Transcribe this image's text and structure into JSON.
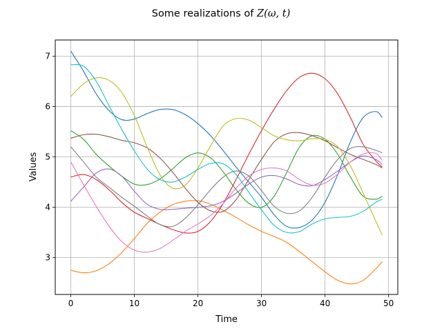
{
  "chart_data": {
    "type": "line",
    "title_prefix": "Some realizations of ",
    "title_math": "Z(ω, t)",
    "xlabel": "Time",
    "ylabel": "Values",
    "xlim": [
      -2.45,
      51.45
    ],
    "ylim": [
      2.27,
      7.32
    ],
    "xticks": [
      0,
      10,
      20,
      30,
      40,
      50
    ],
    "yticks": [
      3,
      4,
      5,
      6,
      7
    ],
    "grid": true,
    "series": [
      {
        "color": "#1f77b4",
        "points": [
          [
            0,
            7.1
          ],
          [
            2,
            6.7
          ],
          [
            4,
            6.25
          ],
          [
            6,
            5.92
          ],
          [
            8,
            5.74
          ],
          [
            10,
            5.75
          ],
          [
            12,
            5.86
          ],
          [
            14,
            5.94
          ],
          [
            16,
            5.94
          ],
          [
            18,
            5.84
          ],
          [
            20,
            5.66
          ],
          [
            22,
            5.42
          ],
          [
            24,
            5.12
          ],
          [
            26,
            4.8
          ],
          [
            28,
            4.5
          ],
          [
            30,
            4.2
          ],
          [
            32,
            3.85
          ],
          [
            34,
            3.62
          ],
          [
            36,
            3.6
          ],
          [
            38,
            3.75
          ],
          [
            40,
            4.1
          ],
          [
            42,
            4.65
          ],
          [
            44,
            5.3
          ],
          [
            46,
            5.78
          ],
          [
            48,
            5.9
          ],
          [
            49,
            5.78
          ]
        ]
      },
      {
        "color": "#ff7f0e",
        "points": [
          [
            0,
            2.75
          ],
          [
            2,
            2.7
          ],
          [
            4,
            2.74
          ],
          [
            6,
            2.88
          ],
          [
            8,
            3.1
          ],
          [
            10,
            3.38
          ],
          [
            12,
            3.68
          ],
          [
            14,
            3.9
          ],
          [
            16,
            4.05
          ],
          [
            18,
            4.12
          ],
          [
            20,
            4.13
          ],
          [
            22,
            4.06
          ],
          [
            24,
            3.94
          ],
          [
            26,
            3.8
          ],
          [
            28,
            3.65
          ],
          [
            30,
            3.52
          ],
          [
            32,
            3.42
          ],
          [
            34,
            3.3
          ],
          [
            36,
            3.12
          ],
          [
            38,
            2.92
          ],
          [
            40,
            2.72
          ],
          [
            42,
            2.55
          ],
          [
            44,
            2.48
          ],
          [
            46,
            2.55
          ],
          [
            48,
            2.78
          ],
          [
            49,
            2.92
          ]
        ]
      },
      {
        "color": "#2ca02c",
        "points": [
          [
            0,
            5.52
          ],
          [
            2,
            5.35
          ],
          [
            4,
            5.05
          ],
          [
            6,
            4.82
          ],
          [
            8,
            4.62
          ],
          [
            10,
            4.46
          ],
          [
            12,
            4.45
          ],
          [
            14,
            4.56
          ],
          [
            16,
            4.76
          ],
          [
            18,
            4.98
          ],
          [
            20,
            5.08
          ],
          [
            22,
            4.98
          ],
          [
            24,
            4.7
          ],
          [
            26,
            4.35
          ],
          [
            28,
            4.08
          ],
          [
            30,
            4.0
          ],
          [
            32,
            4.22
          ],
          [
            34,
            4.7
          ],
          [
            36,
            5.2
          ],
          [
            38,
            5.42
          ],
          [
            40,
            5.35
          ],
          [
            42,
            5.05
          ],
          [
            44,
            4.6
          ],
          [
            46,
            4.22
          ],
          [
            48,
            4.16
          ],
          [
            49,
            4.22
          ]
        ]
      },
      {
        "color": "#d62728",
        "points": [
          [
            0,
            4.6
          ],
          [
            2,
            4.65
          ],
          [
            4,
            4.55
          ],
          [
            6,
            4.35
          ],
          [
            8,
            4.1
          ],
          [
            10,
            3.9
          ],
          [
            12,
            3.78
          ],
          [
            14,
            3.66
          ],
          [
            16,
            3.56
          ],
          [
            18,
            3.49
          ],
          [
            20,
            3.52
          ],
          [
            22,
            3.72
          ],
          [
            24,
            4.08
          ],
          [
            26,
            4.55
          ],
          [
            28,
            5.05
          ],
          [
            30,
            5.52
          ],
          [
            32,
            5.95
          ],
          [
            34,
            6.32
          ],
          [
            36,
            6.58
          ],
          [
            38,
            6.66
          ],
          [
            40,
            6.55
          ],
          [
            42,
            6.25
          ],
          [
            44,
            5.78
          ],
          [
            46,
            5.25
          ],
          [
            48,
            4.92
          ],
          [
            49,
            4.8
          ]
        ]
      },
      {
        "color": "#9467bd",
        "points": [
          [
            0,
            4.12
          ],
          [
            2,
            4.4
          ],
          [
            4,
            4.68
          ],
          [
            6,
            4.76
          ],
          [
            8,
            4.62
          ],
          [
            10,
            4.32
          ],
          [
            12,
            4.06
          ],
          [
            14,
            3.96
          ],
          [
            16,
            3.96
          ],
          [
            18,
            3.98
          ],
          [
            20,
            4.0
          ],
          [
            22,
            4.03
          ],
          [
            24,
            4.12
          ],
          [
            26,
            4.28
          ],
          [
            28,
            4.46
          ],
          [
            30,
            4.6
          ],
          [
            32,
            4.63
          ],
          [
            34,
            4.56
          ],
          [
            36,
            4.45
          ],
          [
            38,
            4.43
          ],
          [
            40,
            4.55
          ],
          [
            42,
            4.72
          ],
          [
            44,
            4.9
          ],
          [
            46,
            5.02
          ],
          [
            48,
            4.95
          ],
          [
            49,
            4.85
          ]
        ]
      },
      {
        "color": "#8c564b",
        "points": [
          [
            0,
            5.37
          ],
          [
            2,
            5.44
          ],
          [
            4,
            5.45
          ],
          [
            6,
            5.4
          ],
          [
            8,
            5.33
          ],
          [
            10,
            5.28
          ],
          [
            12,
            5.18
          ],
          [
            14,
            4.98
          ],
          [
            16,
            4.7
          ],
          [
            18,
            4.38
          ],
          [
            20,
            4.1
          ],
          [
            22,
            3.93
          ],
          [
            24,
            3.92
          ],
          [
            26,
            4.15
          ],
          [
            28,
            4.55
          ],
          [
            30,
            4.95
          ],
          [
            32,
            5.3
          ],
          [
            34,
            5.46
          ],
          [
            36,
            5.48
          ],
          [
            38,
            5.42
          ],
          [
            40,
            5.32
          ],
          [
            42,
            5.18
          ],
          [
            44,
            5.05
          ],
          [
            46,
            4.95
          ],
          [
            48,
            4.85
          ],
          [
            49,
            4.78
          ]
        ]
      },
      {
        "color": "#e377c2",
        "points": [
          [
            0,
            4.9
          ],
          [
            2,
            4.45
          ],
          [
            4,
            4.02
          ],
          [
            6,
            3.63
          ],
          [
            8,
            3.32
          ],
          [
            10,
            3.15
          ],
          [
            12,
            3.11
          ],
          [
            14,
            3.18
          ],
          [
            16,
            3.34
          ],
          [
            18,
            3.52
          ],
          [
            20,
            3.67
          ],
          [
            22,
            3.84
          ],
          [
            24,
            4.08
          ],
          [
            26,
            4.38
          ],
          [
            28,
            4.62
          ],
          [
            30,
            4.75
          ],
          [
            32,
            4.78
          ],
          [
            34,
            4.72
          ],
          [
            36,
            4.55
          ],
          [
            38,
            4.44
          ],
          [
            40,
            4.48
          ],
          [
            42,
            4.66
          ],
          [
            44,
            4.9
          ],
          [
            46,
            5.06
          ],
          [
            48,
            5.07
          ],
          [
            49,
            4.93
          ]
        ]
      },
      {
        "color": "#7f7f7f",
        "points": [
          [
            0,
            5.2
          ],
          [
            2,
            4.9
          ],
          [
            4,
            4.6
          ],
          [
            6,
            4.4
          ],
          [
            8,
            4.2
          ],
          [
            10,
            4.02
          ],
          [
            12,
            3.83
          ],
          [
            14,
            3.66
          ],
          [
            16,
            3.62
          ],
          [
            18,
            3.78
          ],
          [
            20,
            4.05
          ],
          [
            22,
            4.35
          ],
          [
            24,
            4.6
          ],
          [
            26,
            4.72
          ],
          [
            28,
            4.62
          ],
          [
            30,
            4.33
          ],
          [
            32,
            4.02
          ],
          [
            34,
            3.88
          ],
          [
            36,
            3.93
          ],
          [
            38,
            4.2
          ],
          [
            40,
            4.6
          ],
          [
            42,
            4.95
          ],
          [
            44,
            5.17
          ],
          [
            46,
            5.2
          ],
          [
            48,
            5.13
          ],
          [
            49,
            5.08
          ]
        ]
      },
      {
        "color": "#bcbd22",
        "points": [
          [
            0,
            6.2
          ],
          [
            2,
            6.45
          ],
          [
            4,
            6.57
          ],
          [
            6,
            6.52
          ],
          [
            8,
            6.28
          ],
          [
            10,
            5.82
          ],
          [
            12,
            5.2
          ],
          [
            14,
            4.65
          ],
          [
            16,
            4.38
          ],
          [
            18,
            4.44
          ],
          [
            20,
            4.78
          ],
          [
            22,
            5.22
          ],
          [
            24,
            5.62
          ],
          [
            26,
            5.76
          ],
          [
            28,
            5.73
          ],
          [
            30,
            5.58
          ],
          [
            32,
            5.42
          ],
          [
            34,
            5.34
          ],
          [
            36,
            5.32
          ],
          [
            38,
            5.36
          ],
          [
            40,
            5.35
          ],
          [
            42,
            5.2
          ],
          [
            44,
            4.82
          ],
          [
            46,
            4.28
          ],
          [
            48,
            3.72
          ],
          [
            49,
            3.45
          ]
        ]
      },
      {
        "color": "#17becf",
        "points": [
          [
            0,
            6.83
          ],
          [
            2,
            6.8
          ],
          [
            4,
            6.5
          ],
          [
            6,
            6.02
          ],
          [
            8,
            5.55
          ],
          [
            10,
            5.12
          ],
          [
            12,
            4.76
          ],
          [
            14,
            4.55
          ],
          [
            16,
            4.5
          ],
          [
            18,
            4.6
          ],
          [
            20,
            4.75
          ],
          [
            22,
            4.87
          ],
          [
            24,
            4.86
          ],
          [
            26,
            4.65
          ],
          [
            28,
            4.3
          ],
          [
            30,
            3.95
          ],
          [
            32,
            3.64
          ],
          [
            34,
            3.5
          ],
          [
            36,
            3.52
          ],
          [
            38,
            3.67
          ],
          [
            40,
            3.77
          ],
          [
            42,
            3.8
          ],
          [
            44,
            3.82
          ],
          [
            46,
            3.92
          ],
          [
            48,
            4.1
          ],
          [
            49,
            4.16
          ]
        ]
      }
    ]
  }
}
